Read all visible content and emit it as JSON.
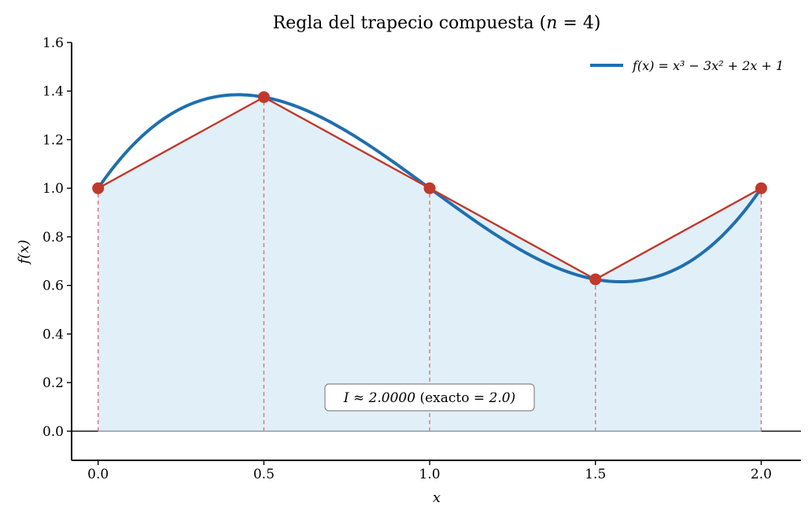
{
  "chart_data": {
    "type": "line",
    "title": "Regla del trapecio compuesta  (n = 4)",
    "title_parts": {
      "prefix": "Regla del trapecio compuesta  (",
      "var": "n",
      "suffix": " = 4)"
    },
    "xlabel": "x",
    "ylabel": "f(x)",
    "xlim": [
      -0.08,
      2.12
    ],
    "ylim": [
      -0.12,
      1.6
    ],
    "xticks": [
      "0.0",
      "0.5",
      "1.0",
      "1.5",
      "2.0"
    ],
    "xtick_values": [
      0,
      0.5,
      1.0,
      1.5,
      2.0
    ],
    "yticks": [
      "0.0",
      "0.2",
      "0.4",
      "0.6",
      "0.8",
      "1.0",
      "1.2",
      "1.4",
      "1.6"
    ],
    "ytick_values": [
      0,
      0.2,
      0.4,
      0.6,
      0.8,
      1.0,
      1.2,
      1.4,
      1.6
    ],
    "curve": {
      "name": "f(x) = x³ − 3x² + 2x + 1",
      "coefficients": [
        1,
        -3,
        2,
        1
      ],
      "domain": [
        0,
        2
      ],
      "color": "#1f6fae"
    },
    "trapezoid": {
      "x": [
        0,
        0.5,
        1.0,
        1.5,
        2.0
      ],
      "y": [
        1.0,
        1.375,
        1.0,
        0.625,
        1.0
      ],
      "line_color": "#c0392b",
      "fill_color": "#deedf8"
    },
    "annotation": "I ≈ 2.0000   (exacto = 2.0)",
    "annotation_parts": {
      "var": "I",
      "approx": " ≈ 2.0000",
      "text": "   (exacto ",
      "eq": "= 2.0)"
    },
    "legend_position": "upper-right",
    "grid": false
  }
}
